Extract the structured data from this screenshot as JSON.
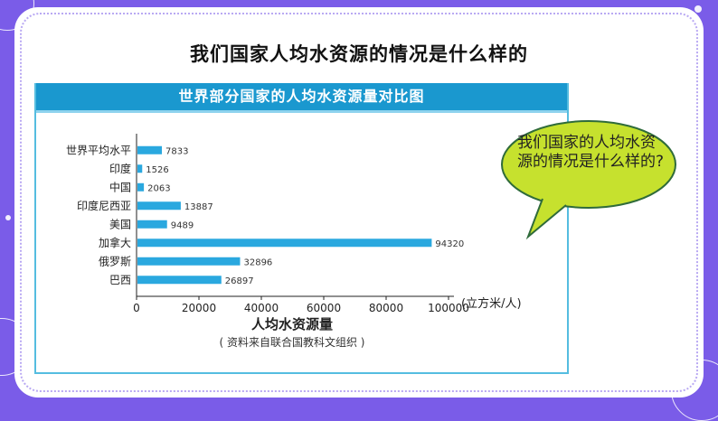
{
  "slide": {
    "title": "我们国家人均水资源的情况是什么样的",
    "bubble_text": "我们国家的人均水资源的情况是什么样的?"
  },
  "colors": {
    "background": "#7a5ce8",
    "banner": "#1a98cf",
    "bar": "#2aa8df",
    "bubble_fill": "#c6e12e",
    "bubble_stroke": "#2f6b3a"
  },
  "chart_data": {
    "type": "bar",
    "orientation": "horizontal",
    "title": "世界部分国家的人均水资源量对比图",
    "categories": [
      "世界平均水平",
      "印度",
      "中国",
      "印度尼西亚",
      "美国",
      "加拿大",
      "俄罗斯",
      "巴西"
    ],
    "values": [
      7833,
      1526,
      2063,
      13887,
      9489,
      94320,
      32896,
      26897
    ],
    "data_labels": [
      "7833",
      "1526",
      "2063",
      "13887",
      "9489",
      "94320",
      "32896",
      "26897"
    ],
    "xlim": [
      0,
      100000
    ],
    "xticks": [
      "0",
      "20000",
      "40000",
      "60000",
      "80000",
      "100000"
    ],
    "xlabel": "人均水资源量",
    "unit": "(立方米/人)",
    "source": "( 资料来自联合国教科文组织 )",
    "grid": false,
    "legend": "none"
  }
}
